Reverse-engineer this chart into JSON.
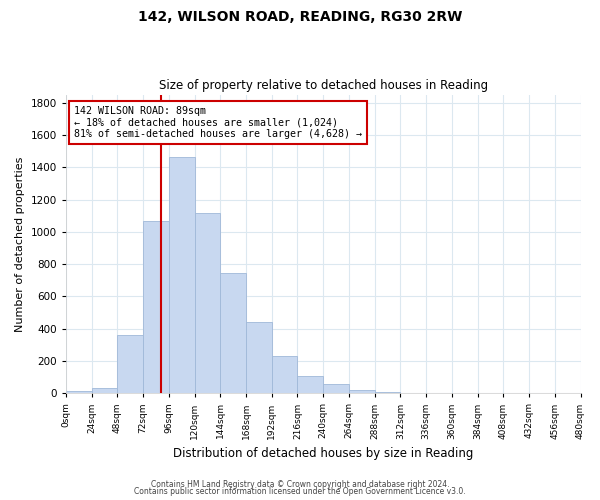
{
  "title": "142, WILSON ROAD, READING, RG30 2RW",
  "subtitle": "Size of property relative to detached houses in Reading",
  "xlabel": "Distribution of detached houses by size in Reading",
  "ylabel": "Number of detached properties",
  "bin_edges": [
    0,
    24,
    48,
    72,
    96,
    120,
    144,
    168,
    192,
    216,
    240,
    264,
    288,
    312,
    336,
    360,
    384,
    408,
    432,
    456,
    480
  ],
  "bar_heights": [
    15,
    35,
    360,
    1065,
    1465,
    1115,
    745,
    440,
    230,
    110,
    55,
    20,
    10,
    0,
    0,
    0,
    0,
    0,
    0,
    0
  ],
  "bar_color": "#c8d8f0",
  "bar_edge_color": "#a0b8d8",
  "property_line_x": 89,
  "annotation_title": "142 WILSON ROAD: 89sqm",
  "annotation_line1": "← 18% of detached houses are smaller (1,024)",
  "annotation_line2": "81% of semi-detached houses are larger (4,628) →",
  "annotation_box_color": "#ffffff",
  "annotation_box_edge": "#cc0000",
  "red_line_color": "#cc0000",
  "ylim": [
    0,
    1850
  ],
  "footer1": "Contains HM Land Registry data © Crown copyright and database right 2024.",
  "footer2": "Contains public sector information licensed under the Open Government Licence v3.0.",
  "background_color": "#ffffff",
  "grid_color": "#dce8f0",
  "tick_labels": [
    "0sqm",
    "24sqm",
    "48sqm",
    "72sqm",
    "96sqm",
    "120sqm",
    "144sqm",
    "168sqm",
    "192sqm",
    "216sqm",
    "240sqm",
    "264sqm",
    "288sqm",
    "312sqm",
    "336sqm",
    "360sqm",
    "384sqm",
    "408sqm",
    "432sqm",
    "456sqm",
    "480sqm"
  ]
}
